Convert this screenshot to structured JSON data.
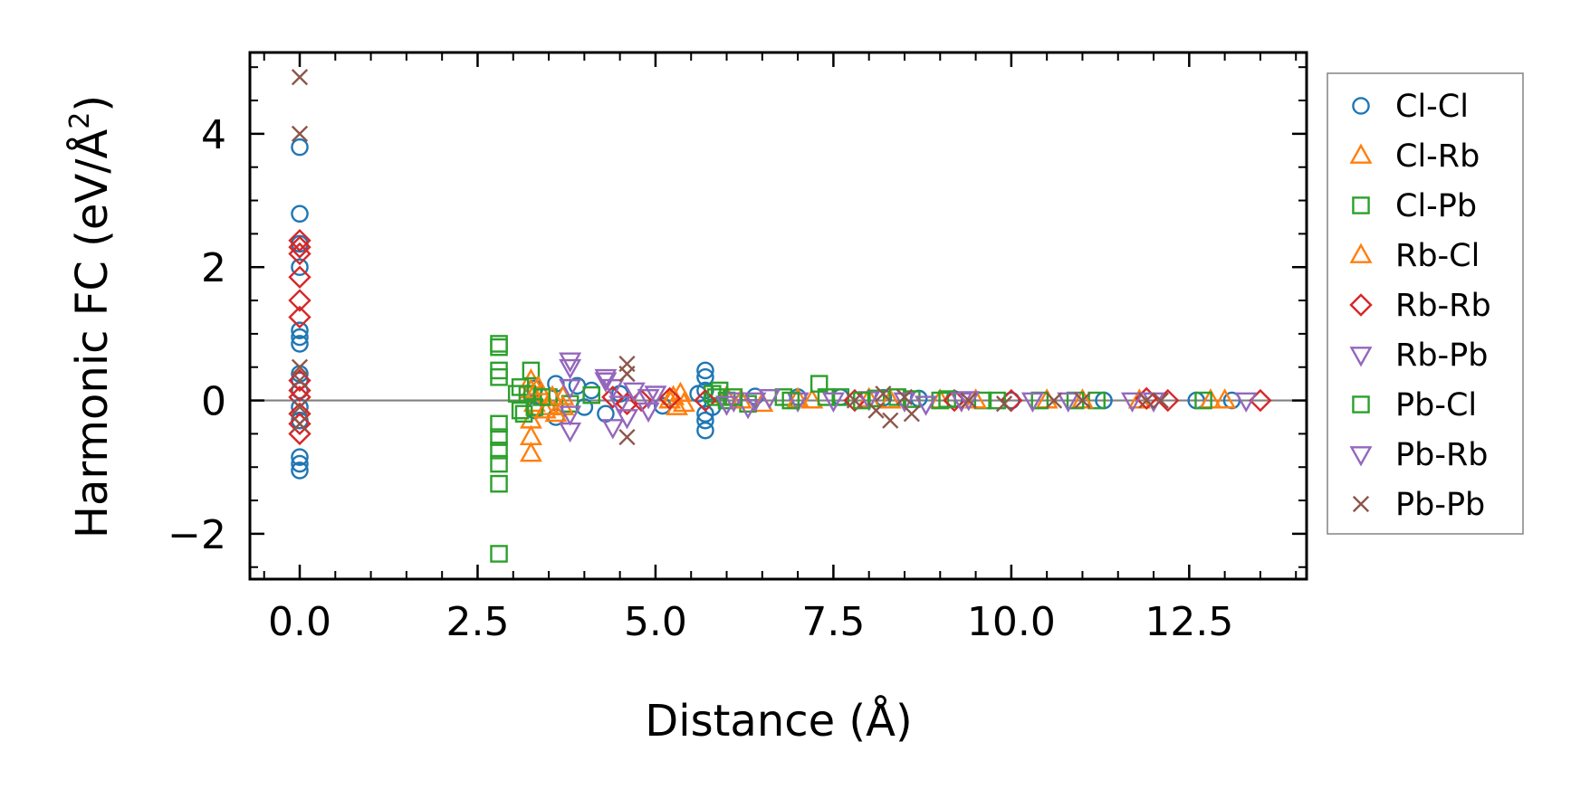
{
  "chart_data": {
    "type": "scatter",
    "xlabel": "Distance (Å)",
    "ylabel": "Harmonic FC (eV/Å²)",
    "ylabel_main": "Harmonic FC (eV/Å",
    "ylabel_sup": "2",
    "ylabel_close": ")",
    "xlim": [
      -0.7,
      14.15
    ],
    "ylim": [
      -2.68,
      5.22
    ],
    "x_ticks": [
      0,
      2.5,
      5,
      7.5,
      10,
      12.5
    ],
    "x_tick_labels": [
      "0.0",
      "2.5",
      "5.0",
      "7.5",
      "10.0",
      "12.5"
    ],
    "y_ticks": [
      -2,
      0,
      2,
      4
    ],
    "y_tick_labels": [
      "−2",
      "0",
      "2",
      "4"
    ],
    "zero_line": true,
    "grid": false,
    "legend_position": "outside right",
    "series": [
      {
        "name": "Cl-Cl",
        "marker": "circle",
        "color": "#1f77b4",
        "points": [
          [
            0,
            3.8
          ],
          [
            0,
            2.8
          ],
          [
            0,
            2.35
          ],
          [
            0,
            2.0
          ],
          [
            0,
            1.05
          ],
          [
            0,
            0.95
          ],
          [
            0,
            0.85
          ],
          [
            0,
            0.4
          ],
          [
            0,
            0.3
          ],
          [
            0,
            0.15
          ],
          [
            0,
            -0.1
          ],
          [
            0,
            -0.3
          ],
          [
            0,
            -0.85
          ],
          [
            0,
            -0.95
          ],
          [
            0,
            -1.05
          ],
          [
            3.3,
            0.18
          ],
          [
            3.3,
            -0.15
          ],
          [
            3.6,
            0.25
          ],
          [
            3.6,
            -0.25
          ],
          [
            3.9,
            0.22
          ],
          [
            4.0,
            -0.1
          ],
          [
            4.1,
            0.15
          ],
          [
            4.3,
            -0.2
          ],
          [
            4.5,
            0.1
          ],
          [
            5.1,
            -0.08
          ],
          [
            5.7,
            0.45
          ],
          [
            5.7,
            0.35
          ],
          [
            5.7,
            0.15
          ],
          [
            5.7,
            -0.2
          ],
          [
            5.7,
            -0.3
          ],
          [
            5.7,
            -0.45
          ],
          [
            5.6,
            0.1
          ],
          [
            5.8,
            -0.1
          ],
          [
            6.4,
            0.06
          ],
          [
            7.0,
            0.05
          ],
          [
            7.6,
            0.05
          ],
          [
            8.2,
            0.04
          ],
          [
            8.7,
            0.03
          ],
          [
            9.2,
            0.02
          ],
          [
            10.0,
            0.0
          ],
          [
            11.3,
            0.0
          ],
          [
            12.6,
            0.0
          ],
          [
            13.1,
            0.0
          ]
        ]
      },
      {
        "name": "Cl-Rb",
        "marker": "triangle-up",
        "color": "#ff7f0e",
        "points": [
          [
            3.25,
            0.3
          ],
          [
            3.25,
            0.15
          ],
          [
            3.3,
            -0.05
          ],
          [
            3.25,
            -0.3
          ],
          [
            3.25,
            -0.55
          ],
          [
            3.25,
            -0.8
          ],
          [
            3.4,
            0.1
          ],
          [
            3.5,
            -0.1
          ],
          [
            3.6,
            -0.2
          ],
          [
            3.7,
            0.05
          ],
          [
            5.2,
            0.0
          ],
          [
            5.3,
            -0.1
          ],
          [
            5.35,
            0.1
          ],
          [
            6.0,
            0.05
          ],
          [
            6.5,
            -0.05
          ],
          [
            7.2,
            0.0
          ],
          [
            8.0,
            0.02
          ],
          [
            9.0,
            0.0
          ],
          [
            10.5,
            0.0
          ],
          [
            11.8,
            0.0
          ],
          [
            12.8,
            0.0
          ]
        ]
      },
      {
        "name": "Cl-Pb",
        "marker": "square",
        "color": "#2ca02c",
        "points": [
          [
            2.8,
            0.85
          ],
          [
            2.8,
            0.8
          ],
          [
            2.8,
            0.45
          ],
          [
            2.8,
            0.35
          ],
          [
            2.8,
            -0.35
          ],
          [
            2.8,
            -0.55
          ],
          [
            2.8,
            -0.75
          ],
          [
            2.8,
            -0.95
          ],
          [
            2.8,
            -1.25
          ],
          [
            2.8,
            -2.3
          ],
          [
            3.1,
            0.2
          ],
          [
            3.1,
            -0.15
          ],
          [
            3.2,
            0.1
          ],
          [
            3.25,
            0.45
          ],
          [
            3.3,
            -0.1
          ],
          [
            3.5,
            0.05
          ],
          [
            3.8,
            -0.05
          ],
          [
            4.1,
            0.08
          ],
          [
            5.8,
            0.1
          ],
          [
            5.9,
            0.15
          ],
          [
            6.0,
            0.0
          ],
          [
            6.3,
            -0.05
          ],
          [
            6.8,
            0.05
          ],
          [
            7.3,
            0.25
          ],
          [
            7.6,
            0.05
          ],
          [
            8.1,
            0.03
          ],
          [
            8.6,
            0.02
          ],
          [
            9.0,
            0.0
          ],
          [
            9.6,
            0.0
          ],
          [
            10.4,
            0.0
          ],
          [
            11.2,
            0.0
          ],
          [
            12.7,
            0.0
          ]
        ]
      },
      {
        "name": "Rb-Cl",
        "marker": "triangle-up",
        "color": "#ff7f0e",
        "points": [
          [
            3.35,
            0.2
          ],
          [
            3.45,
            -0.15
          ],
          [
            3.55,
            0.05
          ],
          [
            3.7,
            -0.1
          ],
          [
            5.25,
            0.05
          ],
          [
            5.4,
            -0.05
          ],
          [
            6.2,
            0.0
          ],
          [
            7.0,
            0.02
          ],
          [
            8.3,
            0.0
          ],
          [
            9.5,
            0.0
          ],
          [
            11.0,
            0.0
          ],
          [
            13.0,
            0.0
          ]
        ]
      },
      {
        "name": "Rb-Rb",
        "marker": "diamond",
        "color": "#d62728",
        "points": [
          [
            0,
            2.4
          ],
          [
            0,
            2.2
          ],
          [
            0,
            2.3
          ],
          [
            0,
            1.85
          ],
          [
            0,
            1.5
          ],
          [
            0,
            1.25
          ],
          [
            0,
            0.3
          ],
          [
            0,
            0.15
          ],
          [
            0,
            0.05
          ],
          [
            0,
            -0.2
          ],
          [
            0,
            -0.35
          ],
          [
            0,
            -0.5
          ],
          [
            4.4,
            0.05
          ],
          [
            4.6,
            -0.05
          ],
          [
            4.8,
            0.0
          ],
          [
            5.2,
            0.03
          ],
          [
            5.7,
            0.0
          ],
          [
            7.8,
            0.0
          ],
          [
            9.2,
            0.0
          ],
          [
            10.0,
            0.0
          ],
          [
            11.9,
            0.03
          ],
          [
            12.2,
            0.0
          ],
          [
            13.5,
            0.0
          ]
        ]
      },
      {
        "name": "Rb-Pb",
        "marker": "triangle-down",
        "color": "#9467bd",
        "points": [
          [
            3.8,
            0.6
          ],
          [
            3.8,
            0.5
          ],
          [
            3.8,
            0.2
          ],
          [
            3.8,
            -0.2
          ],
          [
            3.8,
            -0.45
          ],
          [
            4.3,
            0.3
          ],
          [
            4.4,
            0.2
          ],
          [
            4.5,
            -0.05
          ],
          [
            4.4,
            -0.4
          ],
          [
            4.7,
            0.15
          ],
          [
            4.9,
            -0.15
          ],
          [
            5.0,
            0.1
          ],
          [
            6.1,
            0.0
          ],
          [
            6.3,
            -0.1
          ],
          [
            6.6,
            0.05
          ],
          [
            7.0,
            0.0
          ],
          [
            8.0,
            0.02
          ],
          [
            8.8,
            -0.05
          ],
          [
            9.4,
            0.02
          ],
          [
            10.3,
            0.0
          ],
          [
            11.7,
            0.0
          ],
          [
            13.3,
            0.0
          ]
        ]
      },
      {
        "name": "Pb-Cl",
        "marker": "square",
        "color": "#2ca02c",
        "points": [
          [
            3.05,
            0.1
          ],
          [
            3.15,
            -0.2
          ],
          [
            3.4,
            0.05
          ],
          [
            5.85,
            0.05
          ],
          [
            6.1,
            0.05
          ],
          [
            6.9,
            0.0
          ],
          [
            7.4,
            0.05
          ],
          [
            7.9,
            0.0
          ],
          [
            8.4,
            0.05
          ],
          [
            9.1,
            0.02
          ],
          [
            9.8,
            0.0
          ],
          [
            10.9,
            0.0
          ]
        ]
      },
      {
        "name": "Pb-Rb",
        "marker": "triangle-down",
        "color": "#9467bd",
        "points": [
          [
            4.3,
            0.35
          ],
          [
            4.6,
            -0.25
          ],
          [
            4.9,
            0.05
          ],
          [
            6.0,
            -0.05
          ],
          [
            6.4,
            0.0
          ],
          [
            7.5,
            0.0
          ],
          [
            8.5,
            0.0
          ],
          [
            9.3,
            0.0
          ],
          [
            10.8,
            0.0
          ],
          [
            12.0,
            0.0
          ]
        ]
      },
      {
        "name": "Pb-Pb",
        "marker": "x",
        "color": "#8c564b",
        "points": [
          [
            0,
            4.85
          ],
          [
            0,
            4.0
          ],
          [
            0,
            0.5
          ],
          [
            0,
            0.3
          ],
          [
            0,
            -0.1
          ],
          [
            0,
            -0.35
          ],
          [
            4.6,
            0.55
          ],
          [
            4.6,
            0.4
          ],
          [
            4.6,
            -0.55
          ],
          [
            7.8,
            0.0
          ],
          [
            8.1,
            -0.15
          ],
          [
            8.2,
            0.1
          ],
          [
            8.3,
            -0.3
          ],
          [
            8.5,
            0.05
          ],
          [
            8.6,
            -0.2
          ],
          [
            9.4,
            0.0
          ],
          [
            9.9,
            -0.05
          ],
          [
            10.6,
            0.0
          ],
          [
            11.0,
            0.0
          ],
          [
            11.9,
            0.0
          ],
          [
            12.1,
            0.0
          ]
        ]
      }
    ]
  }
}
